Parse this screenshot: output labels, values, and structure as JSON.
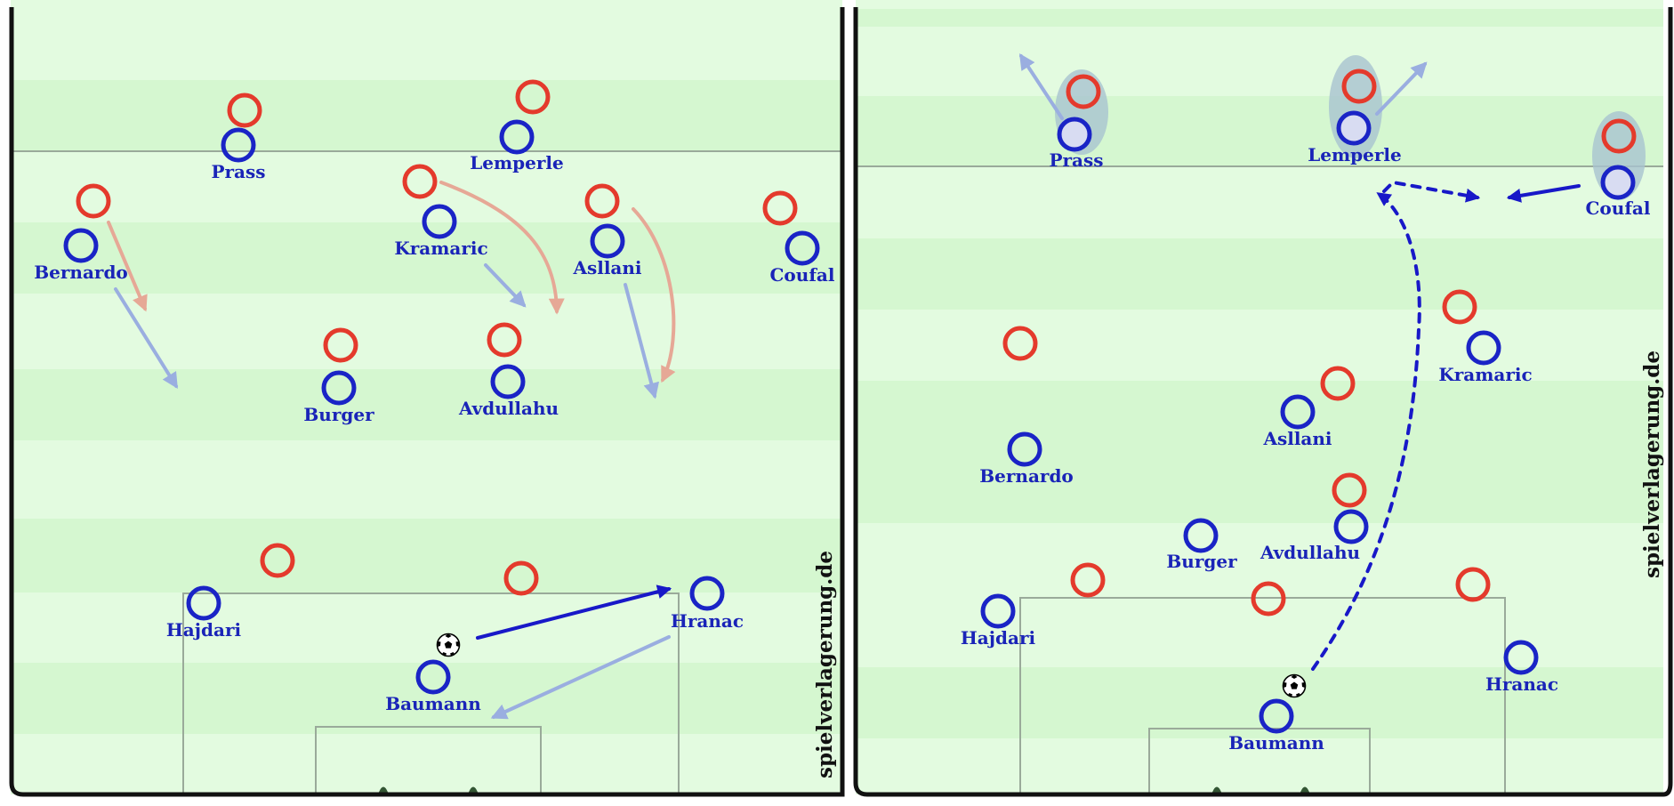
{
  "colors": {
    "stripe_light": "#e3fbe0",
    "stripe_dark": "#d5f7d0",
    "line": "#9aaa9a",
    "border": "#111111",
    "home": "#1a24c6",
    "away": "#e43a2c",
    "label": "#1a24b8",
    "move_blue": "#9aaee0",
    "move_red": "#e6a896",
    "pass": "#1818c8",
    "pressure": "#a9bfd4"
  },
  "watermark": "spielverlagerung.de",
  "panels": [
    {
      "name": "left",
      "players_home": [
        {
          "name": "Prass"
        },
        {
          "name": "Lemperle"
        },
        {
          "name": "Bernardo"
        },
        {
          "name": "Kramaric"
        },
        {
          "name": "Asllani"
        },
        {
          "name": "Coufal"
        },
        {
          "name": "Burger"
        },
        {
          "name": "Avdullahu"
        },
        {
          "name": "Hajdari"
        },
        {
          "name": "Hranac"
        },
        {
          "name": "Baumann"
        }
      ]
    },
    {
      "name": "right",
      "players_home": [
        {
          "name": "Prass"
        },
        {
          "name": "Lemperle"
        },
        {
          "name": "Coufal"
        },
        {
          "name": "Kramaric"
        },
        {
          "name": "Asllani"
        },
        {
          "name": "Bernardo"
        },
        {
          "name": "Avdullahu"
        },
        {
          "name": "Burger"
        },
        {
          "name": "Hajdari"
        },
        {
          "name": "Hranac"
        },
        {
          "name": "Baumann"
        }
      ]
    }
  ]
}
